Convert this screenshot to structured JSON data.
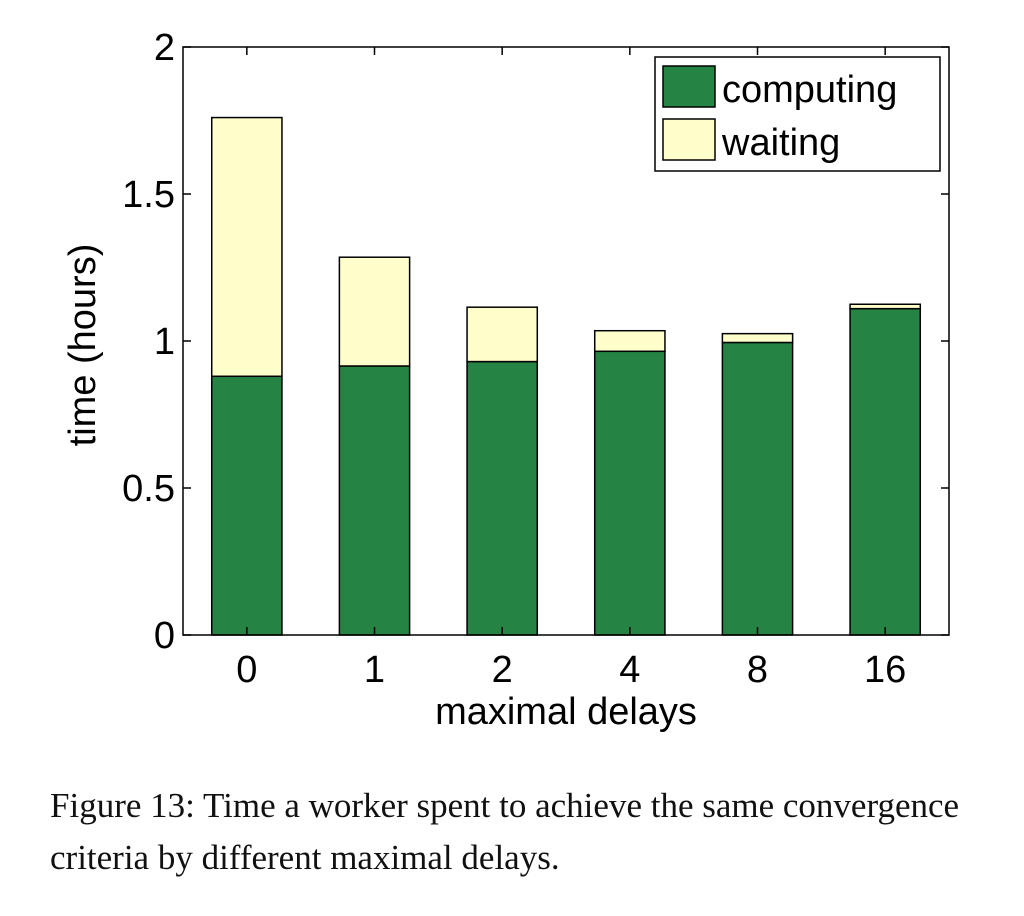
{
  "chart_data": {
    "type": "bar",
    "stacked": true,
    "categories": [
      "0",
      "1",
      "2",
      "4",
      "8",
      "16"
    ],
    "series": [
      {
        "name": "computing",
        "color": "#258444",
        "values": [
          0.88,
          0.915,
          0.93,
          0.965,
          0.995,
          1.11
        ]
      },
      {
        "name": "waiting",
        "color": "#ffffcc",
        "values": [
          0.88,
          0.37,
          0.185,
          0.07,
          0.03,
          0.015
        ]
      }
    ],
    "xlabel": "maximal delays",
    "ylabel": "time (hours)",
    "ylim": [
      0,
      2
    ],
    "yticks": [
      "0",
      "0.5",
      "1",
      "1.5",
      "2"
    ],
    "ytick_values": [
      0,
      0.5,
      1,
      1.5,
      2
    ],
    "grid": false,
    "legend_position": "top-right"
  },
  "caption": "Figure 13: Time a worker spent to achieve the same convergence criteria by different maximal delays."
}
